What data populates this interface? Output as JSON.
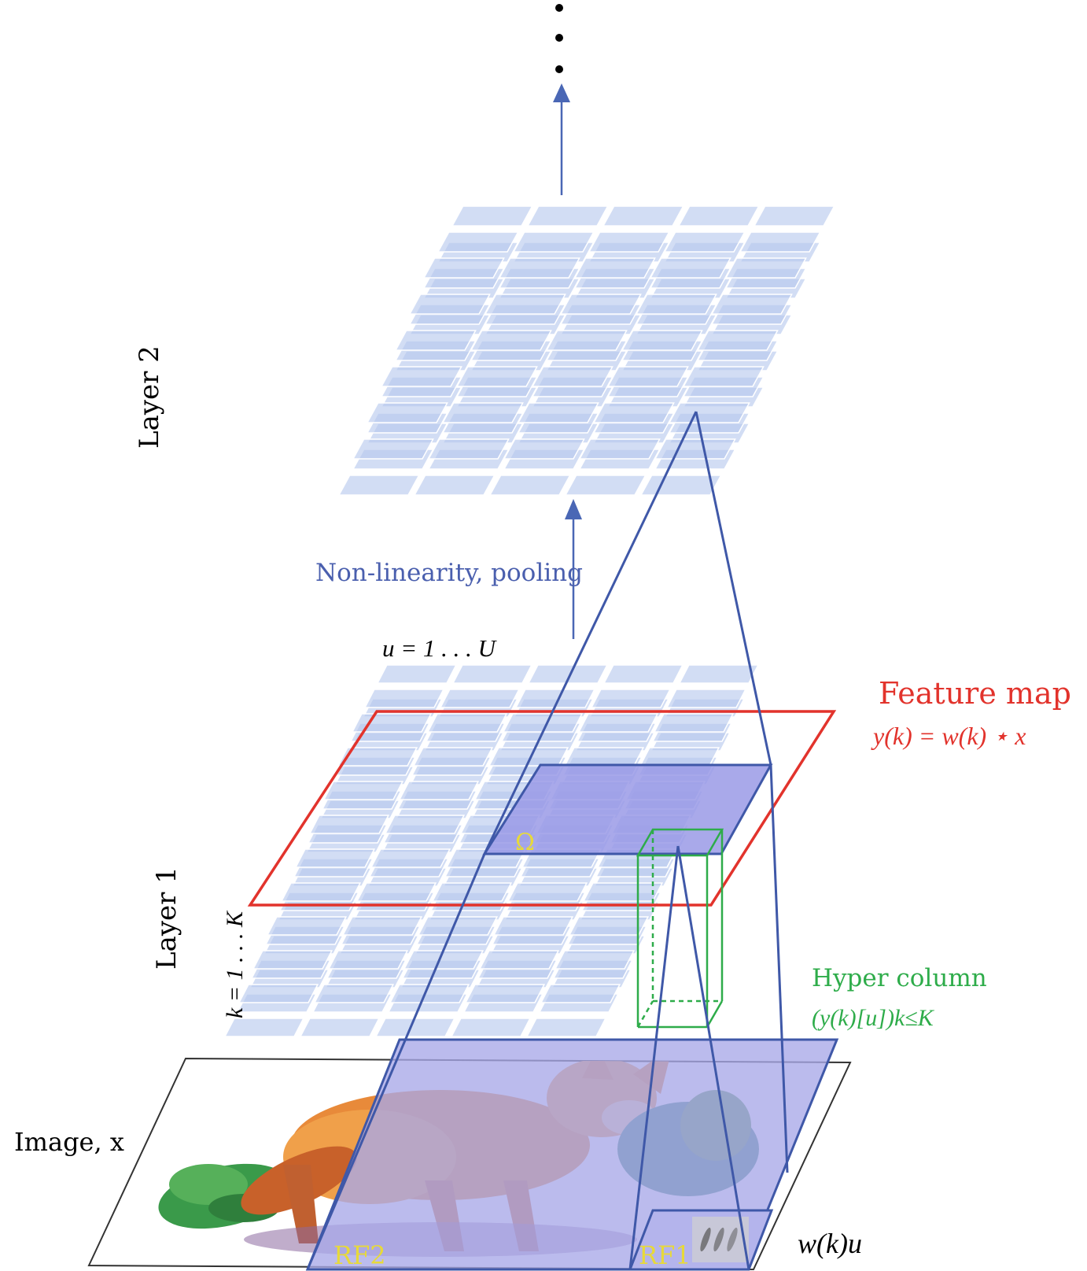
{
  "labels": {
    "layer2": "Layer 2",
    "layer1": "Layer 1",
    "nonlinearity": "Non-linearity, pooling",
    "u_range": "u = 1 . . . U",
    "k_range": "k = 1 . . . K",
    "feature_map_title": "Feature map",
    "feature_map_eq": "y(k) = w(k) ⋆ x",
    "hyper_column_title": "Hyper column",
    "hyper_column_eq": "(y(k)[u])k≤K",
    "omega": "Ω",
    "image_label": "Image, x",
    "rf1": "RF1",
    "rf2": "RF2",
    "weight": "w(k)u",
    "continuation_dots": "⋮"
  },
  "colors": {
    "tile_blue": "#b7c8ee",
    "line_blue": "#3f58a8",
    "arrow_blue": "#4a67b5",
    "text_blue": "#4a5fae",
    "red": "#e2332c",
    "green": "#2eac4a",
    "yellow": "#e7d93a",
    "overlay": "#a8a8e8"
  }
}
